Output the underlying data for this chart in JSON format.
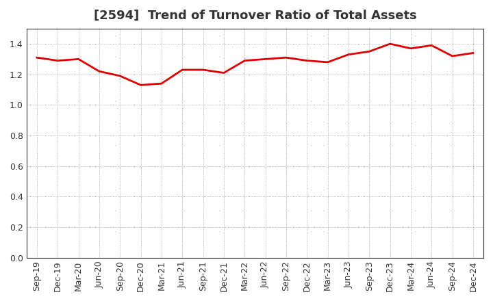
{
  "title": "[2594]  Trend of Turnover Ratio of Total Assets",
  "x_labels": [
    "Sep-19",
    "Dec-19",
    "Mar-20",
    "Jun-20",
    "Sep-20",
    "Dec-20",
    "Mar-21",
    "Jun-21",
    "Sep-21",
    "Dec-21",
    "Mar-22",
    "Jun-22",
    "Sep-22",
    "Dec-22",
    "Mar-23",
    "Jun-23",
    "Sep-23",
    "Dec-23",
    "Mar-24",
    "Jun-24",
    "Sep-24",
    "Dec-24"
  ],
  "y_values": [
    1.31,
    1.29,
    1.3,
    1.22,
    1.19,
    1.13,
    1.14,
    1.23,
    1.23,
    1.21,
    1.29,
    1.3,
    1.31,
    1.29,
    1.28,
    1.33,
    1.35,
    1.4,
    1.37,
    1.39,
    1.32,
    1.34
  ],
  "line_color": "#dd0000",
  "line_width": 2.0,
  "ylim": [
    0.0,
    1.5
  ],
  "yticks": [
    0.0,
    0.2,
    0.4,
    0.6,
    0.8,
    1.0,
    1.2,
    1.4
  ],
  "background_color": "#ffffff",
  "grid_color": "#999999",
  "title_fontsize": 13,
  "tick_fontsize": 9,
  "title_color": "#333333"
}
